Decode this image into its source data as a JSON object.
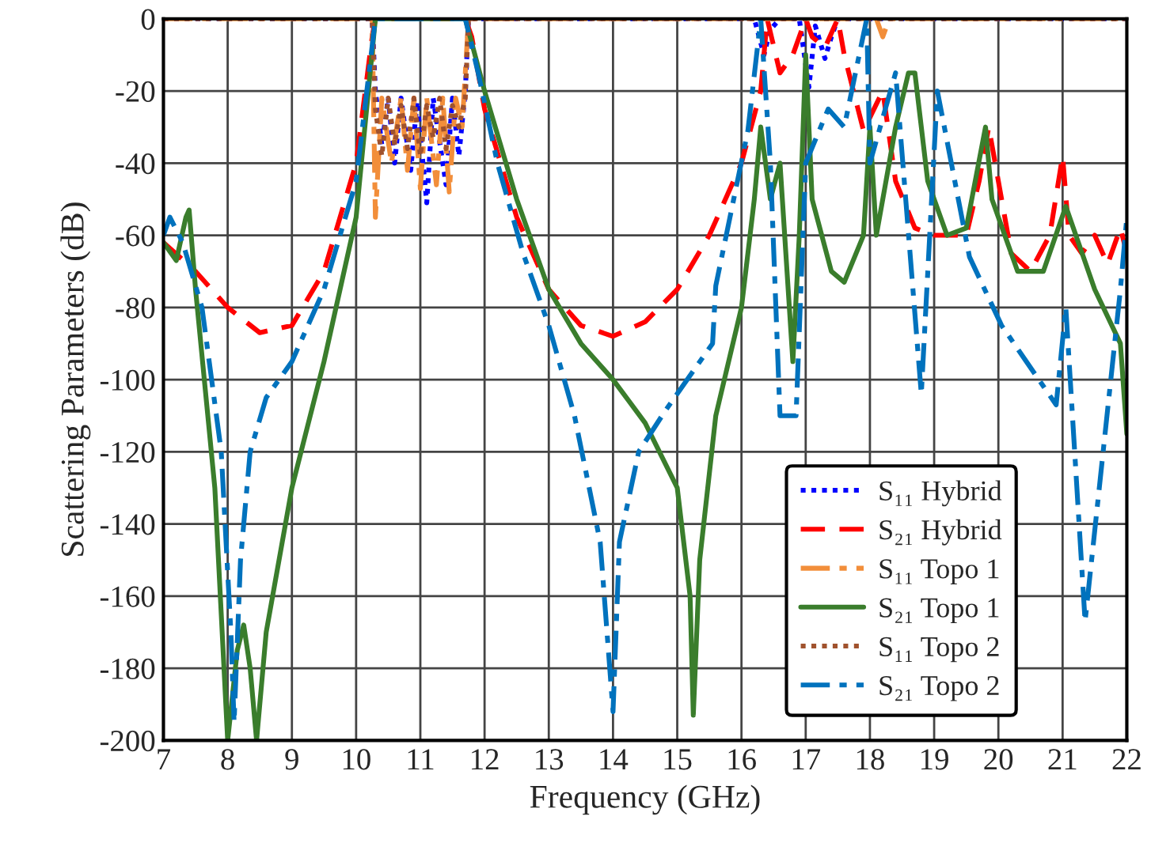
{
  "chart_data": {
    "type": "line",
    "xlabel": "Frequency (GHz)",
    "ylabel": "Scattering Parameters (dB)",
    "xlim": [
      7,
      22
    ],
    "ylim": [
      -200,
      0
    ],
    "xticks": [
      7,
      8,
      9,
      10,
      11,
      12,
      13,
      14,
      15,
      16,
      17,
      18,
      19,
      20,
      21,
      22
    ],
    "yticks": [
      -200,
      -180,
      -160,
      -140,
      -120,
      -100,
      -80,
      -60,
      -40,
      -20,
      0
    ],
    "grid": true,
    "legend": "bottom right",
    "series": [
      {
        "name": "S₁₁ Hybrid",
        "color": "#0000ff",
        "line_style": "dotted",
        "x": [
          7,
          10.25,
          10.3,
          10.4,
          10.5,
          10.6,
          10.7,
          10.85,
          10.95,
          11.1,
          11.2,
          11.4,
          11.5,
          11.6,
          11.7,
          11.75,
          16.2,
          16.35,
          16.45,
          16.6,
          16.9,
          17.05,
          17.15,
          17.3,
          17.4,
          17.5,
          22
        ],
        "values": [
          0,
          0,
          -20,
          -35,
          -22,
          -40,
          -22,
          -42,
          -23,
          -51,
          -22,
          -46,
          -22,
          -38,
          -20,
          0,
          0,
          -10,
          -3,
          0,
          0,
          -19,
          -2,
          -11,
          -5,
          0,
          0
        ]
      },
      {
        "name": "S₂₁ Hybrid",
        "color": "#ff0000",
        "line_style": "dashed",
        "x": [
          7,
          7.5,
          8,
          8.5,
          9,
          9.5,
          10,
          10.25,
          10.3,
          11.7,
          11.8,
          12,
          12.5,
          13,
          13.5,
          14,
          14.5,
          15,
          15.5,
          16,
          16.3,
          16.4,
          16.6,
          16.8,
          17,
          17.1,
          17.3,
          17.5,
          17.6,
          17.9,
          18.2,
          18.4,
          18.7,
          19,
          19.5,
          19.7,
          19.85,
          20.2,
          20.5,
          20.8,
          21,
          21.1,
          21.3,
          21.5,
          21.7,
          21.9,
          22
        ],
        "values": [
          -62,
          -70,
          -80,
          -87,
          -85,
          -70,
          -40,
          -5,
          0,
          0,
          -5,
          -25,
          -55,
          -75,
          -85,
          -88,
          -84,
          -75,
          -60,
          -40,
          -20,
          0,
          -15,
          -10,
          0,
          -5,
          -8,
          0,
          -10,
          -31,
          -20,
          -45,
          -58,
          -60,
          -60,
          -45,
          -30,
          -65,
          -70,
          -60,
          -38,
          -60,
          -65,
          -60,
          -68,
          -58,
          -65
        ]
      },
      {
        "name": "S₁₁ Topo 1",
        "color": "#f28e3a",
        "line_style": "dashdot",
        "x": [
          7,
          10.25,
          10.3,
          10.4,
          10.55,
          10.7,
          10.8,
          10.9,
          11.0,
          11.1,
          11.25,
          11.35,
          11.45,
          11.55,
          11.65,
          11.75,
          18.1,
          18.2,
          18.3,
          22
        ],
        "values": [
          0,
          0,
          -55,
          -22,
          -40,
          -22,
          -42,
          -22,
          -47,
          -22,
          -46,
          -22,
          -48,
          -22,
          -30,
          0,
          0,
          -5,
          0,
          0
        ]
      },
      {
        "name": "S₂₁ Topo 1",
        "color": "#3a7d2c",
        "line_style": "solid",
        "x": [
          7,
          7.2,
          7.35,
          7.4,
          7.5,
          7.8,
          8.0,
          8.15,
          8.25,
          8.35,
          8.45,
          8.6,
          9,
          9.5,
          10,
          10.3,
          11.7,
          12,
          12.5,
          13,
          13.5,
          14,
          14.5,
          15,
          15.2,
          15.25,
          15.35,
          15.6,
          16,
          16.2,
          16.3,
          16.45,
          16.6,
          16.8,
          16.9,
          17.0,
          17.1,
          17.4,
          17.6,
          17.9,
          18.0,
          18.1,
          18.4,
          18.6,
          18.7,
          18.9,
          19.2,
          19.5,
          19.8,
          19.9,
          20.3,
          20.7,
          21.05,
          21.5,
          21.9,
          22
        ],
        "values": [
          -62,
          -67,
          -55,
          -53,
          -75,
          -130,
          -200,
          -175,
          -168,
          -180,
          -200,
          -170,
          -130,
          -95,
          -55,
          0,
          0,
          -20,
          -50,
          -75,
          -90,
          -100,
          -112,
          -130,
          -160,
          -193,
          -150,
          -110,
          -80,
          -50,
          -30,
          -50,
          -40,
          -95,
          -60,
          -10,
          -50,
          -70,
          -73,
          -60,
          -30,
          -60,
          -30,
          -15,
          -15,
          -45,
          -60,
          -58,
          -30,
          -50,
          -70,
          -70,
          -52,
          -75,
          -90,
          -115
        ]
      },
      {
        "name": "S₁₁ Topo 2",
        "color": "#a0522d",
        "line_style": "dotted",
        "x": [
          7,
          10.25,
          10.3,
          10.4,
          10.5,
          10.6,
          10.7,
          10.8,
          10.9,
          11.0,
          11.1,
          11.2,
          11.3,
          11.4,
          11.5,
          11.6,
          11.7,
          11.75,
          22
        ],
        "values": [
          0,
          0,
          -25,
          -38,
          -22,
          -35,
          -24,
          -36,
          -22,
          -38,
          -24,
          -33,
          -22,
          -36,
          -24,
          -30,
          -22,
          0,
          0
        ]
      },
      {
        "name": "S₂₁ Topo 2",
        "color": "#0072bd",
        "line_style": "dashdot",
        "x": [
          7,
          7.1,
          7.3,
          7.6,
          7.9,
          8.05,
          8.1,
          8.2,
          8.35,
          8.6,
          9,
          9.5,
          10,
          10.3,
          11.7,
          11.9,
          12.2,
          12.6,
          13,
          13.4,
          13.8,
          14,
          14.1,
          14.4,
          14.8,
          15.55,
          15.6,
          16.1,
          16.3,
          16.45,
          16.6,
          16.85,
          17.0,
          17.35,
          17.6,
          17.95,
          18.0,
          18.4,
          18.8,
          19.05,
          19.55,
          20.05,
          20.9,
          21.05,
          21.35,
          21.9,
          22
        ],
        "values": [
          -60,
          -55,
          -62,
          -80,
          -120,
          -170,
          -195,
          -150,
          -120,
          -105,
          -95,
          -75,
          -45,
          0,
          0,
          -15,
          -40,
          -65,
          -85,
          -110,
          -145,
          -192,
          -145,
          -120,
          -109,
          -90,
          -74,
          -31,
          0,
          -40,
          -110,
          -110,
          -40,
          -25,
          -30,
          0,
          -40,
          -15,
          -104,
          -20,
          -66,
          -85,
          -107,
          -80,
          -167,
          -75,
          -55
        ]
      }
    ]
  }
}
